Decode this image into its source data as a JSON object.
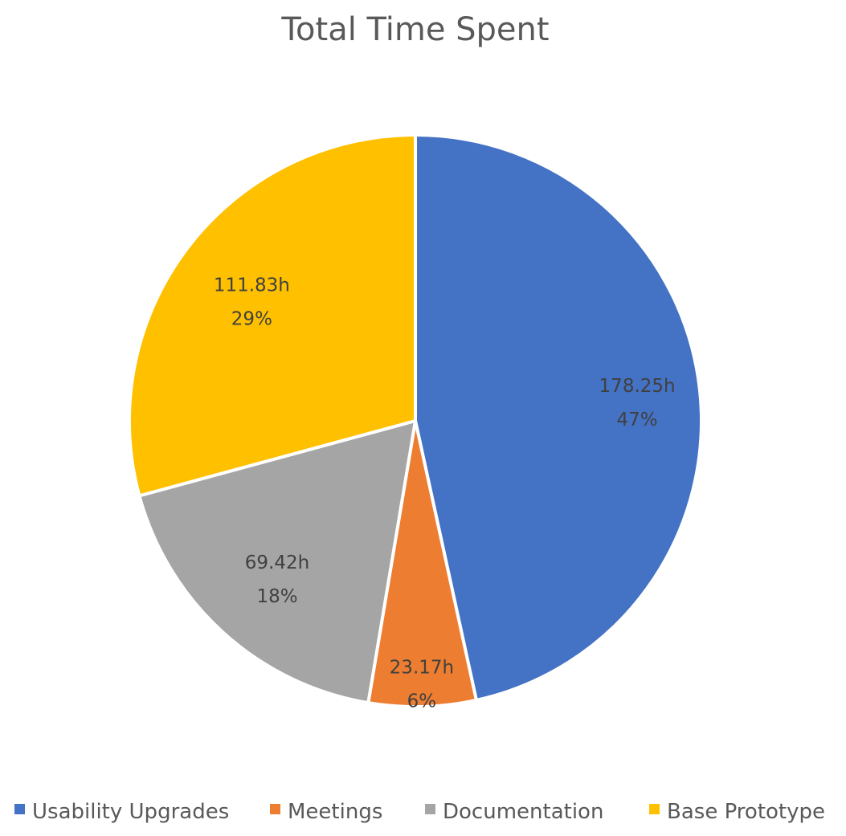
{
  "chart_data": {
    "type": "pie",
    "title": "Total Time Spent",
    "categories": [
      "Usability Upgrades",
      "Meetings",
      "Documentation",
      "Base Prototype"
    ],
    "values": [
      178.25,
      23.17,
      69.42,
      111.83
    ],
    "value_labels": [
      "178.25h",
      "23.17h",
      "69.42h",
      "111.83h"
    ],
    "percent_labels": [
      "47%",
      "6%",
      "18%",
      "29%"
    ],
    "colors": [
      "#4472C4",
      "#ED7D31",
      "#A5A5A5",
      "#FFC000"
    ],
    "start_angle_deg": 0,
    "direction": "clockwise",
    "legend_position": "bottom",
    "slice_border_color": "#FFFFFF"
  }
}
